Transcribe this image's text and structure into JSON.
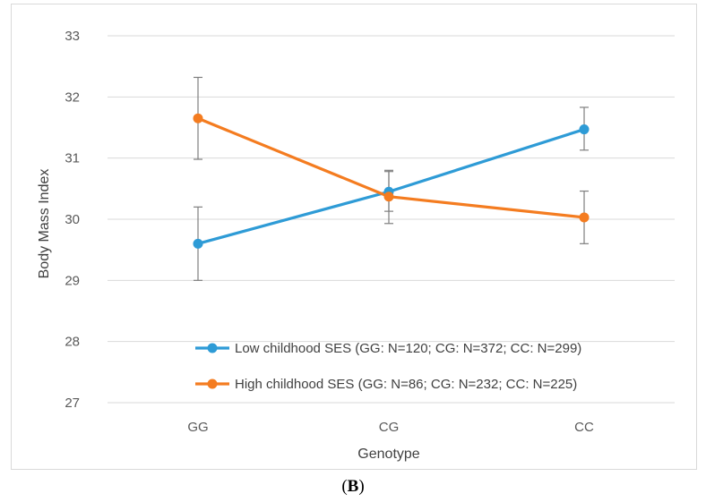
{
  "chart_data": {
    "type": "line",
    "xlabel": "Genotype",
    "ylabel": "Body Mass Index",
    "categories": [
      "GG",
      "CG",
      "CC"
    ],
    "ylim": [
      27,
      33
    ],
    "yticks": [
      27,
      28,
      29,
      30,
      31,
      32,
      33
    ],
    "grid": true,
    "legend_position": "inside-bottom",
    "series": [
      {
        "name": "Low childhood SES (GG: N=120; CG: N=372; CC: N=299)",
        "color": "#2E9BD6",
        "values": [
          29.6,
          30.45,
          31.47
        ],
        "error_low": [
          29.0,
          30.13,
          31.13
        ],
        "error_high": [
          30.2,
          30.8,
          31.83
        ]
      },
      {
        "name": "High childhood SES (GG: N=86; CG: N=232; CC: N=225)",
        "color": "#F47C20",
        "values": [
          31.65,
          30.37,
          30.03
        ],
        "error_low": [
          30.98,
          29.93,
          29.6
        ],
        "error_high": [
          32.32,
          30.78,
          30.46
        ]
      }
    ]
  },
  "panel_label": {
    "open": "(",
    "letter": "B",
    "close": ")"
  }
}
